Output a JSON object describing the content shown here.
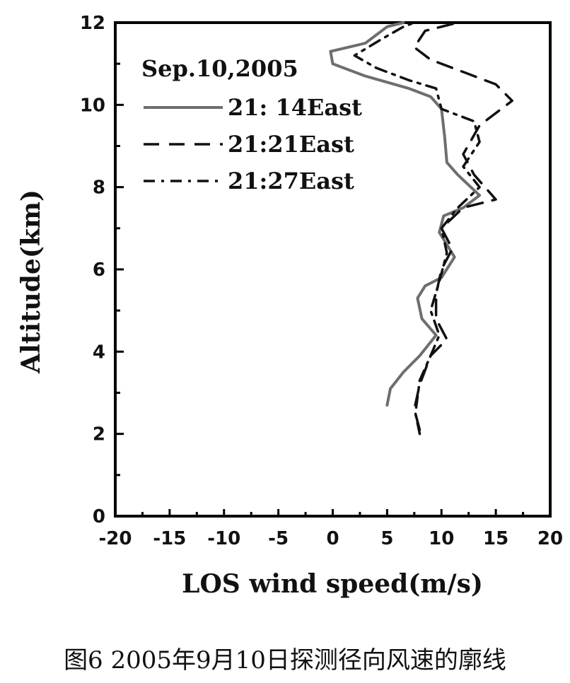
{
  "chart_data": {
    "type": "line",
    "xlabel": "LOS wind speed(m/s)",
    "ylabel": "Altitude(km)",
    "xlim": [
      -20,
      20
    ],
    "ylim": [
      0,
      12
    ],
    "xticks": [
      -20,
      -15,
      -10,
      -5,
      0,
      5,
      10,
      15,
      20
    ],
    "yticks": [
      0,
      2,
      4,
      6,
      8,
      10,
      12
    ],
    "grid": false,
    "legend_title": "Sep.10,2005",
    "legend_position": "top-left",
    "series": [
      {
        "name": "21: 14East",
        "style": "solid",
        "color": "#6e6e6e",
        "points": [
          [
            5.0,
            2.7
          ],
          [
            5.3,
            3.1
          ],
          [
            6.5,
            3.5
          ],
          [
            8.0,
            3.9
          ],
          [
            9.5,
            4.4
          ],
          [
            8.2,
            4.8
          ],
          [
            7.8,
            5.3
          ],
          [
            8.5,
            5.6
          ],
          [
            10.0,
            5.8
          ],
          [
            11.2,
            6.3
          ],
          [
            9.8,
            6.9
          ],
          [
            10.2,
            7.3
          ],
          [
            12.0,
            7.5
          ],
          [
            13.5,
            7.8
          ],
          [
            11.5,
            8.3
          ],
          [
            10.5,
            8.6
          ],
          [
            10.3,
            9.2
          ],
          [
            10.0,
            9.9
          ],
          [
            9.0,
            10.2
          ],
          [
            7.0,
            10.4
          ],
          [
            3.0,
            10.7
          ],
          [
            0.0,
            11.0
          ],
          [
            -0.2,
            11.3
          ],
          [
            3.0,
            11.5
          ],
          [
            5.0,
            11.9
          ],
          [
            6.5,
            12.0
          ]
        ]
      },
      {
        "name": "21:21East",
        "style": "dashed",
        "color": "#111111",
        "points": [
          [
            8.0,
            2.1
          ],
          [
            7.5,
            2.6
          ],
          [
            8.0,
            3.2
          ],
          [
            9.0,
            3.9
          ],
          [
            10.5,
            4.3
          ],
          [
            9.5,
            4.8
          ],
          [
            9.5,
            5.4
          ],
          [
            10.0,
            6.0
          ],
          [
            11.0,
            6.5
          ],
          [
            10.0,
            7.0
          ],
          [
            12.0,
            7.5
          ],
          [
            15.0,
            7.7
          ],
          [
            13.0,
            8.3
          ],
          [
            12.0,
            8.8
          ],
          [
            13.5,
            9.5
          ],
          [
            16.5,
            10.1
          ],
          [
            15.0,
            10.5
          ],
          [
            12.0,
            10.8
          ],
          [
            9.0,
            11.1
          ],
          [
            7.5,
            11.4
          ],
          [
            8.5,
            11.8
          ],
          [
            11.5,
            12.0
          ]
        ]
      },
      {
        "name": "21:27East",
        "style": "dashdot",
        "color": "#111111",
        "points": [
          [
            8.0,
            2.0
          ],
          [
            7.6,
            2.5
          ],
          [
            8.0,
            3.3
          ],
          [
            9.0,
            3.9
          ],
          [
            9.8,
            4.4
          ],
          [
            9.0,
            5.0
          ],
          [
            9.8,
            5.7
          ],
          [
            10.5,
            6.4
          ],
          [
            10.0,
            7.0
          ],
          [
            11.5,
            7.5
          ],
          [
            13.5,
            8.0
          ],
          [
            12.0,
            8.5
          ],
          [
            13.5,
            9.1
          ],
          [
            13.0,
            9.6
          ],
          [
            10.0,
            9.9
          ],
          [
            9.5,
            10.4
          ],
          [
            7.0,
            10.6
          ],
          [
            4.0,
            10.9
          ],
          [
            2.0,
            11.2
          ],
          [
            4.5,
            11.6
          ],
          [
            6.5,
            11.9
          ],
          [
            7.5,
            12.0
          ]
        ]
      }
    ]
  },
  "caption": "图6 2005年9月10日探测径向风速的廓线"
}
